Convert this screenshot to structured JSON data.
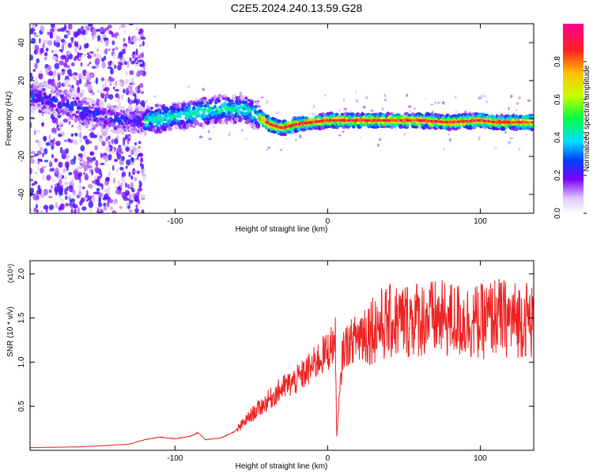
{
  "title": "C2E5.2024.240.13.59.G28",
  "chart_data": [
    {
      "type": "heatmap",
      "xlabel": "Height of straight line (km)",
      "ylabel": "Frequency (Hz)",
      "xlim": [
        -195,
        135
      ],
      "ylim": [
        -50,
        50
      ],
      "xticks": [
        -100,
        0,
        100
      ],
      "yticks": [
        -40,
        -20,
        0,
        20,
        40
      ],
      "colorbar": {
        "label": "Normalized spectral amplitude",
        "range": [
          0,
          1
        ],
        "ticks": [
          "0.0",
          "0.2",
          "0.4",
          "0.6",
          "0.8"
        ]
      },
      "ridge": {
        "x": [
          -190,
          -170,
          -150,
          -135,
          -120,
          -100,
          -85,
          -70,
          -60,
          -52,
          -45,
          -38,
          -30,
          -20,
          -10,
          0,
          10,
          20,
          40,
          60,
          80,
          100,
          110,
          120,
          135
        ],
        "y": [
          12,
          7,
          2,
          -1,
          -1,
          1,
          3,
          5,
          5,
          4,
          1,
          -3,
          -5,
          -3,
          -2,
          -1,
          -1,
          -1,
          -1,
          -1,
          -2,
          -1,
          -2,
          -2,
          -2
        ]
      }
    },
    {
      "type": "line",
      "xlabel": "Height of straight line (km)",
      "ylabel": "SNR (10 * v/v)",
      "y_multiplier": "(x10⁴)",
      "xlim": [
        -195,
        135
      ],
      "ylim": [
        0,
        2.15
      ],
      "xticks": [
        -100,
        0,
        100
      ],
      "yticks": [
        0.5,
        1.0,
        1.5,
        2.0
      ],
      "series": [
        {
          "color": "#ee2222",
          "x": [
            -195,
            -160,
            -130,
            -120,
            -110,
            -100,
            -90,
            -85,
            -80,
            -70,
            -60,
            -50,
            -40,
            -30,
            -20,
            -10,
            -5,
            0,
            5,
            6,
            10,
            20,
            30,
            40,
            60,
            80,
            100,
            110,
            120,
            130,
            135
          ],
          "y": [
            0.03,
            0.04,
            0.07,
            0.12,
            0.15,
            0.13,
            0.16,
            0.2,
            0.12,
            0.14,
            0.22,
            0.4,
            0.55,
            0.7,
            0.8,
            0.95,
            1.05,
            1.12,
            1.25,
            0.15,
            1.15,
            1.3,
            1.4,
            1.45,
            1.5,
            1.48,
            1.45,
            1.52,
            1.48,
            1.5,
            1.45
          ]
        }
      ]
    }
  ]
}
